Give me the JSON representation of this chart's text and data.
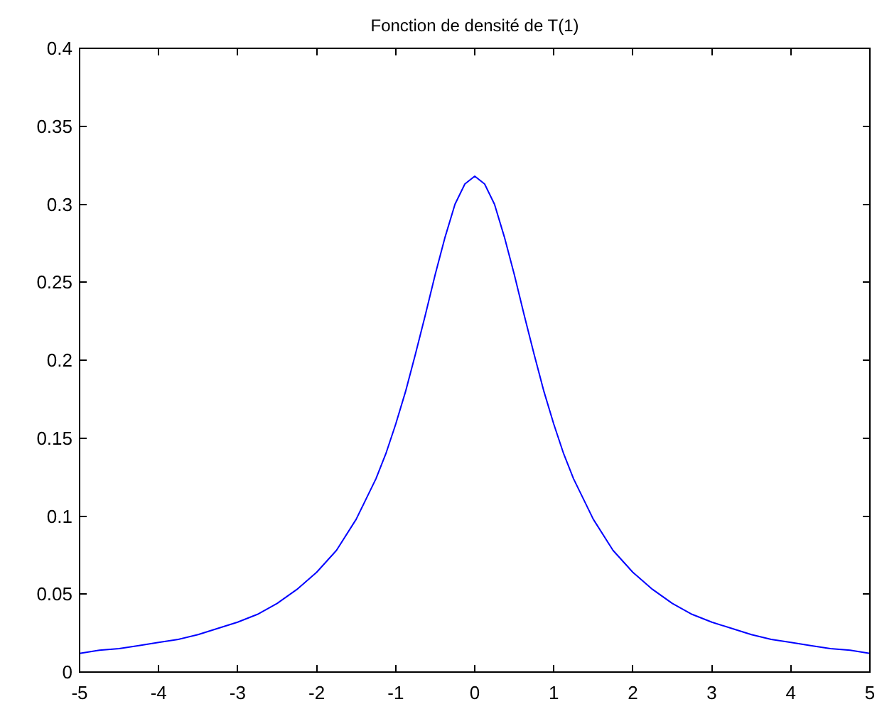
{
  "chart_data": {
    "type": "line",
    "title": "Fonction de densité de T(1)",
    "x": [
      -5,
      -4.75,
      -4.5,
      -4.25,
      -4,
      -3.75,
      -3.5,
      -3.25,
      -3,
      -2.75,
      -2.5,
      -2.25,
      -2,
      -1.75,
      -1.5,
      -1.25,
      -1.125,
      -1,
      -0.875,
      -0.75,
      -0.625,
      -0.5,
      -0.375,
      -0.25,
      -0.125,
      0,
      0.125,
      0.25,
      0.375,
      0.5,
      0.625,
      0.75,
      0.875,
      1,
      1.125,
      1.25,
      1.5,
      1.75,
      2,
      2.25,
      2.5,
      2.75,
      3,
      3.25,
      3.5,
      3.75,
      4,
      4.25,
      4.5,
      4.75,
      5
    ],
    "series": [
      {
        "color": "#0000ff",
        "values": [
          0.012,
          0.014,
          0.015,
          0.017,
          0.019,
          0.021,
          0.024,
          0.028,
          0.032,
          0.037,
          0.044,
          0.053,
          0.064,
          0.078,
          0.098,
          0.124,
          0.14,
          0.159,
          0.18,
          0.204,
          0.229,
          0.255,
          0.279,
          0.3,
          0.313,
          0.318,
          0.313,
          0.3,
          0.279,
          0.255,
          0.229,
          0.204,
          0.18,
          0.159,
          0.14,
          0.124,
          0.098,
          0.078,
          0.064,
          0.053,
          0.044,
          0.037,
          0.032,
          0.028,
          0.024,
          0.021,
          0.019,
          0.017,
          0.015,
          0.014,
          0.012
        ]
      }
    ],
    "xlim": [
      -5,
      5
    ],
    "ylim": [
      0,
      0.4
    ],
    "xticks": [
      -5,
      -4,
      -3,
      -2,
      -1,
      0,
      1,
      2,
      3,
      4,
      5
    ],
    "yticks": [
      0,
      0.05,
      0.1,
      0.15,
      0.2,
      0.25,
      0.3,
      0.35,
      0.4
    ]
  }
}
